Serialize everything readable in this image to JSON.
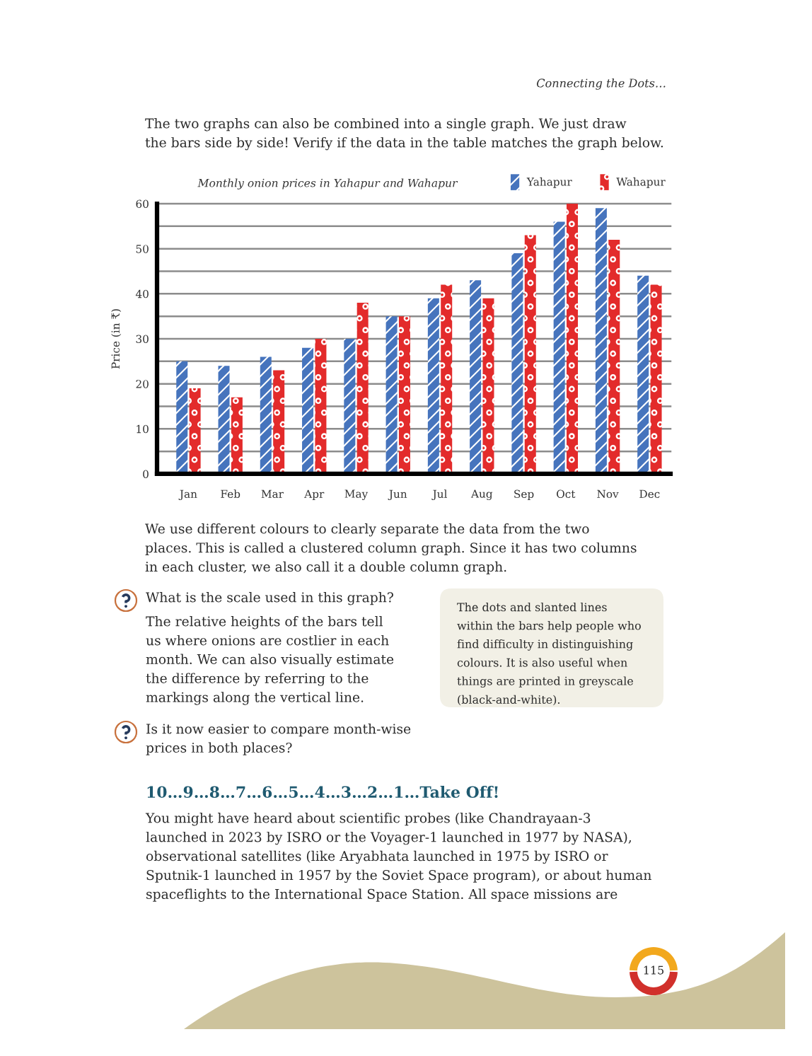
{
  "chart_data": {
    "type": "bar",
    "title": "Monthly onion prices in Yahapur and Wahapur",
    "ylabel": "Price (in ₹)",
    "categories": [
      "Jan",
      "Feb",
      "Mar",
      "Apr",
      "May",
      "Jun",
      "Jul",
      "Aug",
      "Sep",
      "Oct",
      "Nov",
      "Dec"
    ],
    "series": [
      {
        "name": "Yahapur",
        "color": "#4674bd",
        "values": [
          25,
          24,
          26,
          28,
          30,
          35,
          39,
          43,
          49,
          56,
          59,
          44
        ]
      },
      {
        "name": "Wahapur",
        "color": "#e32b2b",
        "values": [
          19,
          17,
          23,
          30,
          38,
          35,
          42,
          39,
          53,
          60,
          52,
          42
        ]
      }
    ],
    "ylim": [
      0,
      60
    ],
    "yticks": [
      0,
      {
        "value": 5,
        "label": null
      },
      10,
      {
        "value": 15,
        "label": null
      },
      20,
      {
        "value": 25,
        "label": null
      },
      30,
      {
        "value": 35,
        "label": null
      },
      40,
      {
        "value": 45,
        "label": null
      },
      50,
      {
        "value": 55,
        "label": null
      },
      60
    ],
    "grid": "y",
    "legend": "top right",
    "annotations": [
      "Connecting the Dots…",
      "The two graphs can also be combined into a single graph. We just draw\nthe bars side by side! Verify if the data in the table matches the graph below.",
      "We use different colours to clearly separate the data from the two\nplaces. This is called a clustered column graph. Since it has two columns\nin each cluster, we also call it a double column graph.",
      "What is the scale used in this graph?",
      "The relative heights of the bars tell\nus where onions are costlier in each\nmonth. We can also visually estimate\nthe difference by referring to the\nmarkings along the vertical line.",
      "The dots and slanted lines\nwithin the bars help people who\nfind difficulty in distinguishing\ncolours. It is also useful when\nthings are printed in greyscale\n(black-and-white).",
      "Is it now easier to compare month-wise\nprices in both places?",
      "10…9…8…7…6…5…4…3…2…1…Take Off!",
      "You might have heard about scientific probes (like Chandrayaan-3\nlaunched in 2023 by ISRO or the Voyager-1 launched in 1977 by NASA),\nobservational satellites (like Aryabhata launched in 1975 by ISRO or\nSputnik-1 launched in 1957 by the Soviet Space program), or about human\nspaceflights to the International Space Station. All space missions are",
      "115"
    ]
  }
}
